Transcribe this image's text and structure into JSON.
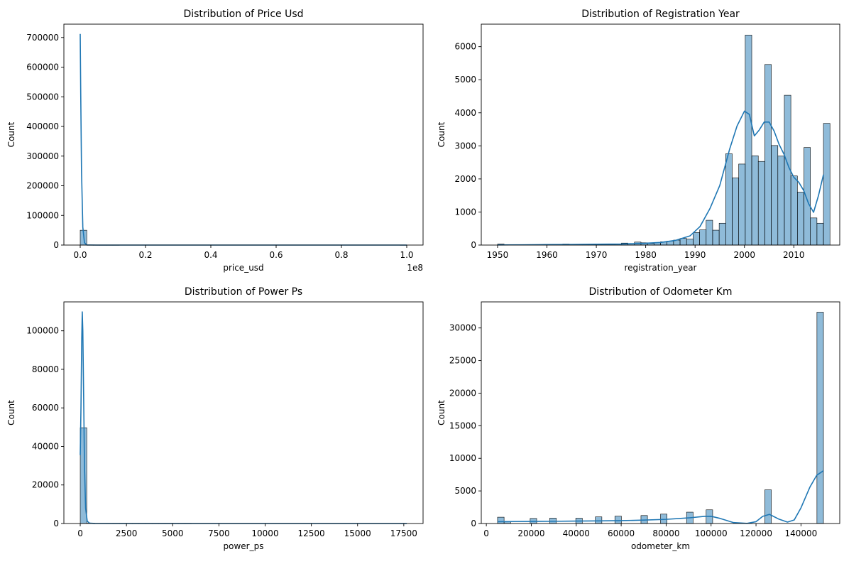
{
  "chart_data": [
    {
      "type": "bar",
      "title": "Distribution of Price Usd",
      "xlabel": "price_usd",
      "ylabel": "Count",
      "xlim": [
        -5000000,
        105000000
      ],
      "ylim": [
        0,
        745000
      ],
      "xticks": [
        0,
        20000000,
        40000000,
        60000000,
        80000000,
        100000000
      ],
      "xtick_labels": [
        "0.0",
        "0.2",
        "0.4",
        "0.6",
        "0.8",
        "1.0"
      ],
      "yticks": [
        0,
        100000,
        200000,
        300000,
        400000,
        500000,
        600000,
        700000
      ],
      "ytick_labels": [
        "0",
        "100000",
        "200000",
        "300000",
        "400000",
        "500000",
        "600000",
        "700000"
      ],
      "offset_label": "1e8",
      "bin_start": 0,
      "bin_width": 2000000,
      "counts": [
        49980,
        4,
        2,
        1,
        1,
        1,
        0,
        0,
        0,
        0,
        0,
        0,
        0,
        0,
        0,
        0,
        0,
        0,
        0,
        0,
        0,
        0,
        0,
        0,
        0,
        0,
        0,
        0,
        0,
        0,
        0,
        0,
        0,
        0,
        0,
        0,
        0,
        0,
        0,
        0,
        0,
        0,
        0,
        0,
        0,
        0,
        0,
        0,
        0,
        1
      ],
      "kde": [
        [
          0,
          712000
        ],
        [
          150000,
          520000
        ],
        [
          400000,
          250000
        ],
        [
          800000,
          60000
        ],
        [
          1300000,
          8000
        ],
        [
          2000000,
          500
        ],
        [
          5000000,
          0
        ],
        [
          100000000,
          0
        ]
      ]
    },
    {
      "type": "bar",
      "title": "Distribution of Registration Year",
      "xlabel": "registration_year",
      "ylabel": "Count",
      "xlim": [
        1946.7,
        2019.3
      ],
      "ylim": [
        0,
        6680
      ],
      "xticks": [
        1950,
        1960,
        1970,
        1980,
        1990,
        2000,
        2010
      ],
      "xtick_labels": [
        "1950",
        "1960",
        "1970",
        "1980",
        "1990",
        "2000",
        "2010"
      ],
      "yticks": [
        0,
        1000,
        2000,
        3000,
        4000,
        5000,
        6000
      ],
      "ytick_labels": [
        "0",
        "1000",
        "2000",
        "3000",
        "4000",
        "5000",
        "6000"
      ],
      "bin_start": 1950,
      "bin_width": 1.32,
      "counts": [
        30,
        10,
        5,
        5,
        8,
        12,
        15,
        10,
        20,
        25,
        30,
        20,
        15,
        20,
        25,
        30,
        20,
        25,
        30,
        60,
        40,
        90,
        70,
        50,
        80,
        100,
        120,
        150,
        200,
        180,
        380,
        460,
        750,
        450,
        660,
        2760,
        2030,
        2450,
        6350,
        2700,
        2530,
        5460,
        3010,
        2690,
        4530,
        2090,
        1600,
        2950,
        820,
        660,
        3680
      ],
      "kde": [
        [
          1950,
          5
        ],
        [
          1955,
          8
        ],
        [
          1960,
          15
        ],
        [
          1965,
          18
        ],
        [
          1970,
          25
        ],
        [
          1975,
          30
        ],
        [
          1980,
          55
        ],
        [
          1983,
          80
        ],
        [
          1986,
          140
        ],
        [
          1989,
          280
        ],
        [
          1991,
          560
        ],
        [
          1993,
          1100
        ],
        [
          1995,
          1800
        ],
        [
          1997,
          2900
        ],
        [
          1998.5,
          3600
        ],
        [
          2000,
          4050
        ],
        [
          2001,
          3950
        ],
        [
          2002,
          3300
        ],
        [
          2003,
          3480
        ],
        [
          2004,
          3720
        ],
        [
          2005,
          3720
        ],
        [
          2006,
          3450
        ],
        [
          2007,
          3050
        ],
        [
          2008,
          2750
        ],
        [
          2009,
          2350
        ],
        [
          2010,
          2050
        ],
        [
          2011,
          1900
        ],
        [
          2012,
          1650
        ],
        [
          2013,
          1250
        ],
        [
          2014,
          990
        ],
        [
          2015,
          1500
        ],
        [
          2016,
          2130
        ]
      ]
    },
    {
      "type": "bar",
      "title": "Distribution of Power Ps",
      "xlabel": "power_ps",
      "ylabel": "Count",
      "xlim": [
        -884,
        18542
      ],
      "ylim": [
        0,
        115000
      ],
      "xticks": [
        0,
        2500,
        5000,
        7500,
        10000,
        12500,
        15000,
        17500
      ],
      "xtick_labels": [
        "0",
        "2500",
        "5000",
        "7500",
        "10000",
        "12500",
        "15000",
        "17500"
      ],
      "yticks": [
        0,
        20000,
        40000,
        60000,
        80000,
        100000
      ],
      "ytick_labels": [
        "0",
        "20000",
        "40000",
        "60000",
        "80000",
        "100000"
      ],
      "bin_start": 0,
      "bin_width": 353.2,
      "counts": [
        49700,
        150,
        40,
        20,
        10,
        5,
        5,
        3,
        3,
        2,
        2,
        1,
        1,
        1,
        1,
        1,
        1,
        0,
        0,
        0,
        0,
        0,
        0,
        0,
        0,
        0,
        0,
        0,
        0,
        0,
        0,
        0,
        0,
        0,
        0,
        0,
        0,
        0,
        0,
        0,
        0,
        0,
        0,
        0,
        0,
        0,
        0,
        0,
        0,
        1
      ],
      "kde": [
        [
          0,
          35500
        ],
        [
          40,
          60000
        ],
        [
          80,
          95000
        ],
        [
          110,
          109800
        ],
        [
          140,
          100000
        ],
        [
          180,
          70000
        ],
        [
          230,
          30000
        ],
        [
          290,
          8000
        ],
        [
          380,
          1200
        ],
        [
          500,
          200
        ],
        [
          800,
          30
        ],
        [
          1500,
          0
        ],
        [
          17660,
          0
        ]
      ]
    },
    {
      "type": "bar",
      "title": "Distribution of Odometer Km",
      "xlabel": "odometer_km",
      "ylabel": "Count",
      "xlim": [
        -2250,
        157250
      ],
      "ylim": [
        0,
        34000
      ],
      "xticks": [
        0,
        20000,
        40000,
        60000,
        80000,
        100000,
        120000,
        140000
      ],
      "xtick_labels": [
        "0",
        "20000",
        "40000",
        "60000",
        "80000",
        "100000",
        "120000",
        "140000"
      ],
      "yticks": [
        0,
        5000,
        10000,
        15000,
        20000,
        25000,
        30000
      ],
      "ytick_labels": [
        "0",
        "5000",
        "10000",
        "15000",
        "20000",
        "25000",
        "30000"
      ],
      "bin_start": 5000,
      "bin_width": 2900,
      "counts": [
        970,
        260,
        0,
        0,
        0,
        780,
        0,
        0,
        830,
        0,
        0,
        0,
        820,
        0,
        0,
        1020,
        0,
        0,
        1130,
        0,
        0,
        0,
        1220,
        0,
        0,
        1440,
        0,
        0,
        0,
        1740,
        0,
        0,
        2100,
        0,
        0,
        0,
        0,
        0,
        0,
        0,
        0,
        5170,
        0,
        0,
        0,
        0,
        0,
        0,
        0,
        32420
      ],
      "kde": [
        [
          5000,
          280
        ],
        [
          10000,
          300
        ],
        [
          20000,
          320
        ],
        [
          30000,
          340
        ],
        [
          40000,
          370
        ],
        [
          50000,
          400
        ],
        [
          60000,
          440
        ],
        [
          70000,
          520
        ],
        [
          80000,
          640
        ],
        [
          90000,
          860
        ],
        [
          97000,
          1100
        ],
        [
          100000,
          1110
        ],
        [
          104000,
          780
        ],
        [
          110000,
          140
        ],
        [
          116000,
          20
        ],
        [
          120000,
          280
        ],
        [
          123000,
          1100
        ],
        [
          126000,
          1400
        ],
        [
          130000,
          700
        ],
        [
          134000,
          220
        ],
        [
          137000,
          550
        ],
        [
          140000,
          2400
        ],
        [
          144000,
          5600
        ],
        [
          147000,
          7400
        ],
        [
          150000,
          8100
        ]
      ]
    }
  ]
}
